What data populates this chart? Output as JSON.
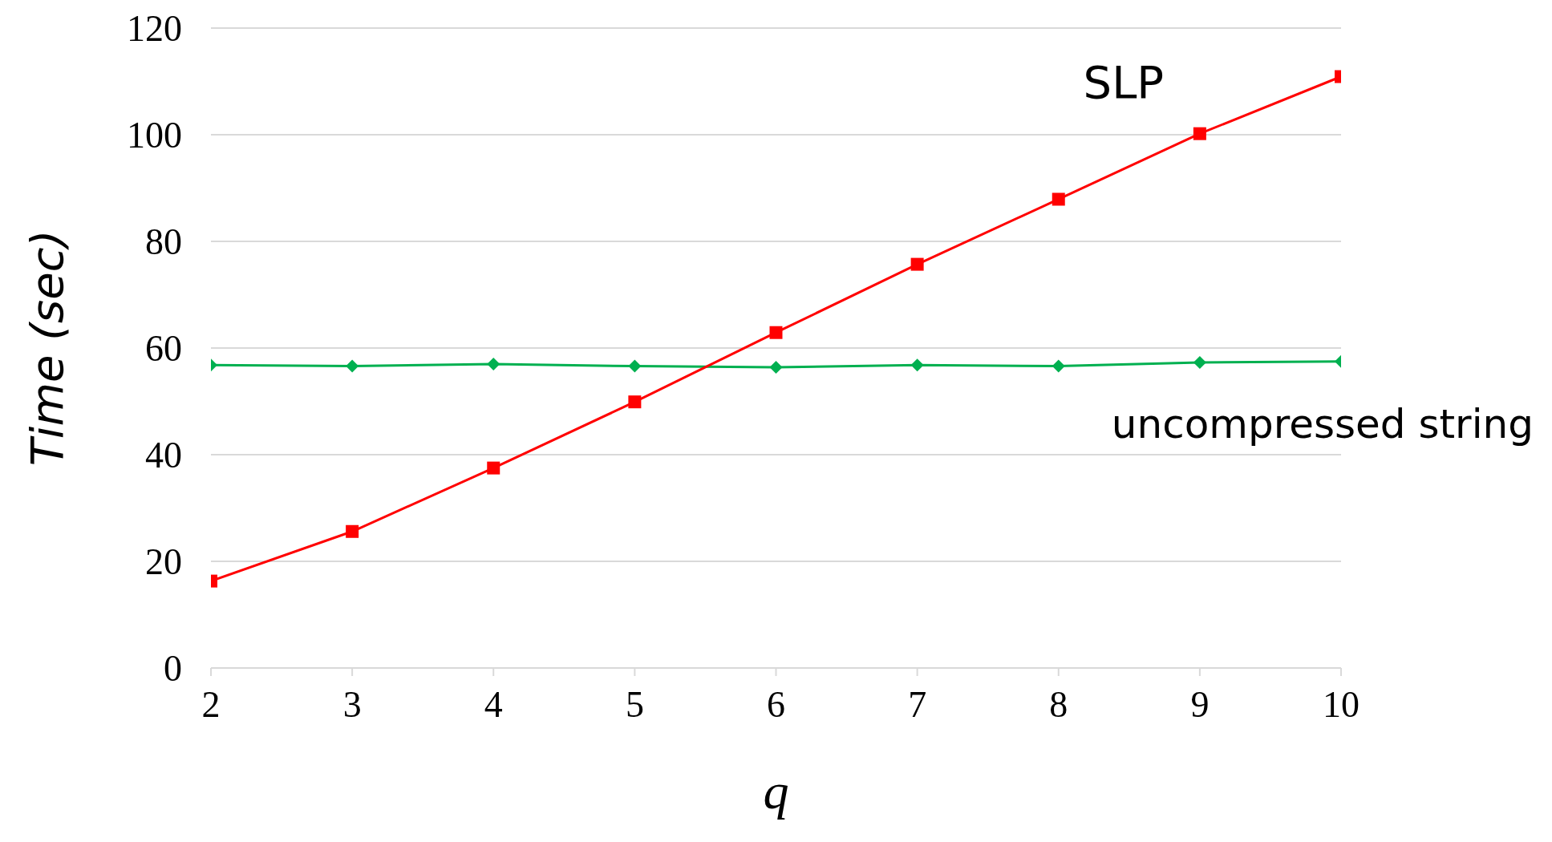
{
  "chart_data": {
    "type": "line",
    "xlabel": "q",
    "ylabel": "Time (sec)",
    "x": [
      2,
      3,
      4,
      5,
      6,
      7,
      8,
      9,
      10
    ],
    "series": [
      {
        "name": "uncompressed string",
        "color": "#00b050",
        "marker": "diamond",
        "values": [
          56.8,
          56.6,
          57.0,
          56.6,
          56.4,
          56.8,
          56.6,
          57.3,
          57.5
        ]
      },
      {
        "name": "SLP",
        "color": "#ff0000",
        "marker": "square",
        "values": [
          16.3,
          25.6,
          37.5,
          49.9,
          62.9,
          75.7,
          87.9,
          100.2,
          110.9
        ]
      }
    ],
    "xlim": [
      2,
      10
    ],
    "xticks": [
      2,
      3,
      4,
      5,
      6,
      7,
      8,
      9,
      10
    ],
    "ylim": [
      0,
      120
    ],
    "yticks": [
      0,
      20,
      40,
      60,
      80,
      100,
      120
    ],
    "grid": "y",
    "legend": false,
    "line_style": "solid"
  }
}
